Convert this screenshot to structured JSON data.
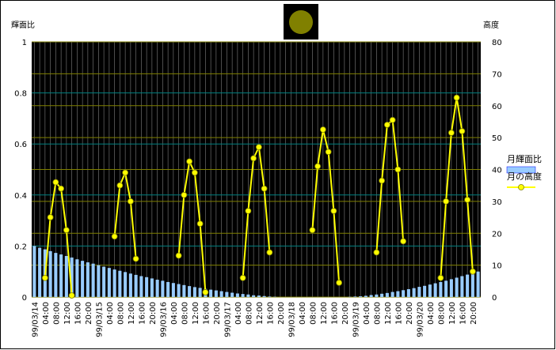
{
  "chart_data": {
    "type": "bar-line",
    "y_label": "輝面比",
    "y2_label": "高度",
    "categories": [
      "99/03/14",
      null,
      "04:00",
      null,
      "08:00",
      null,
      "12:00",
      null,
      "16:00",
      null,
      "20:00",
      null,
      "99/03/15",
      null,
      "04:00",
      null,
      "08:00",
      null,
      "12:00",
      null,
      "16:00",
      null,
      "20:00",
      null,
      "99/03/16",
      null,
      "04:00",
      null,
      "08:00",
      null,
      "12:00",
      null,
      "16:00",
      null,
      "20:00",
      null,
      "99/03/17",
      null,
      "04:00",
      null,
      "08:00",
      null,
      "12:00",
      null,
      "16:00",
      null,
      "20:00",
      null,
      "99/03/18",
      null,
      "04:00",
      null,
      "08:00",
      null,
      "12:00",
      null,
      "16:00",
      null,
      "20:00",
      null,
      "99/03/19",
      null,
      "04:00",
      null,
      "08:00",
      null,
      "12:00",
      null,
      "16:00",
      null,
      "20:00",
      null,
      "99/03/20",
      null,
      "04:00",
      null,
      "08:00",
      null,
      "12:00",
      null,
      "16:00",
      null,
      "20:00",
      null
    ],
    "series": [
      {
        "name": "月輝面比",
        "color": "#99ccff",
        "kind": "bar",
        "axis": "y",
        "values": [
          0.2,
          0.193,
          0.187,
          0.18,
          0.173,
          0.167,
          0.161,
          0.155,
          0.148,
          0.142,
          0.136,
          0.131,
          0.125,
          0.119,
          0.114,
          0.108,
          0.103,
          0.098,
          0.092,
          0.087,
          0.082,
          0.078,
          0.073,
          0.068,
          0.064,
          0.059,
          0.055,
          0.051,
          0.047,
          0.043,
          0.039,
          0.036,
          0.032,
          0.029,
          0.026,
          0.023,
          0.02,
          0.017,
          0.014,
          0.012,
          0.01,
          0.007,
          0.006,
          0.004,
          0.002,
          0.001,
          0,
          0,
          0,
          0,
          0,
          0,
          0,
          0,
          0,
          0,
          0,
          0,
          0,
          0.001,
          0.002,
          0.003,
          0.005,
          0.008,
          0.01,
          0.013,
          0.016,
          0.02,
          0.023,
          0.027,
          0.031,
          0.035,
          0.04,
          0.044,
          0.049,
          0.054,
          0.059,
          0.064,
          0.07,
          0.076,
          0.082,
          0.088,
          0.094,
          0.1
        ]
      },
      {
        "name": "月の高度",
        "color": "#ffff00",
        "kind": "line",
        "axis": "y2",
        "values": [
          null,
          null,
          6,
          25,
          36,
          34,
          21,
          0.5,
          null,
          null,
          null,
          null,
          null,
          null,
          null,
          19,
          35,
          39,
          30,
          12,
          null,
          null,
          null,
          null,
          null,
          null,
          null,
          13,
          32,
          42.5,
          39,
          23,
          1.5,
          null,
          null,
          null,
          null,
          null,
          null,
          6,
          27,
          43.5,
          47,
          34,
          14,
          null,
          null,
          null,
          null,
          null,
          null,
          null,
          21,
          41,
          52.5,
          45.5,
          27,
          4.5,
          null,
          null,
          null,
          null,
          null,
          null,
          14,
          36.5,
          54,
          55.5,
          40,
          17.5,
          null,
          null,
          null,
          null,
          null,
          null,
          6,
          30,
          51.5,
          62.5,
          52,
          30.5,
          8,
          null
        ]
      }
    ],
    "ylim": [
      0,
      1
    ],
    "yticks": [
      0,
      0.2,
      0.4,
      0.6,
      0.8,
      1
    ],
    "y2lim": [
      0,
      80
    ],
    "y2ticks": [
      0,
      10,
      20,
      30,
      40,
      50,
      60,
      70,
      80
    ],
    "grid": true,
    "legend": "right"
  }
}
